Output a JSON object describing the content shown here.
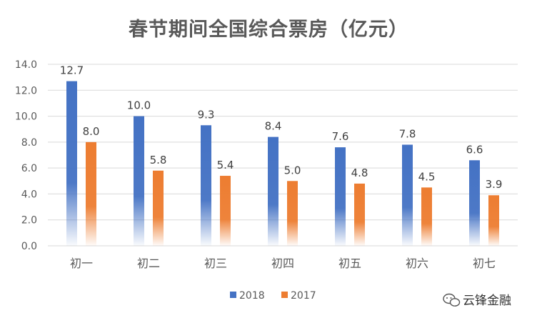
{
  "chart_data": {
    "type": "bar",
    "title": "春节期间全国综合票房（亿元）",
    "categories": [
      "初一",
      "初二",
      "初三",
      "初四",
      "初五",
      "初六",
      "初七"
    ],
    "series": [
      {
        "name": "2018",
        "values": [
          12.7,
          10.0,
          9.3,
          8.4,
          7.6,
          7.8,
          6.6
        ],
        "color": "#4472c4"
      },
      {
        "name": "2017",
        "values": [
          8.0,
          5.8,
          5.4,
          5.0,
          4.8,
          4.5,
          3.9
        ],
        "color": "#ed7d31"
      }
    ],
    "yticks": [
      "0.0",
      "2.0",
      "4.0",
      "6.0",
      "8.0",
      "10.0",
      "12.0",
      "14.0"
    ],
    "ylim": [
      0,
      14
    ],
    "grid": true,
    "legend_position": "bottom"
  },
  "watermark": {
    "text": "云锋金融",
    "icon": "wechat-icon"
  }
}
